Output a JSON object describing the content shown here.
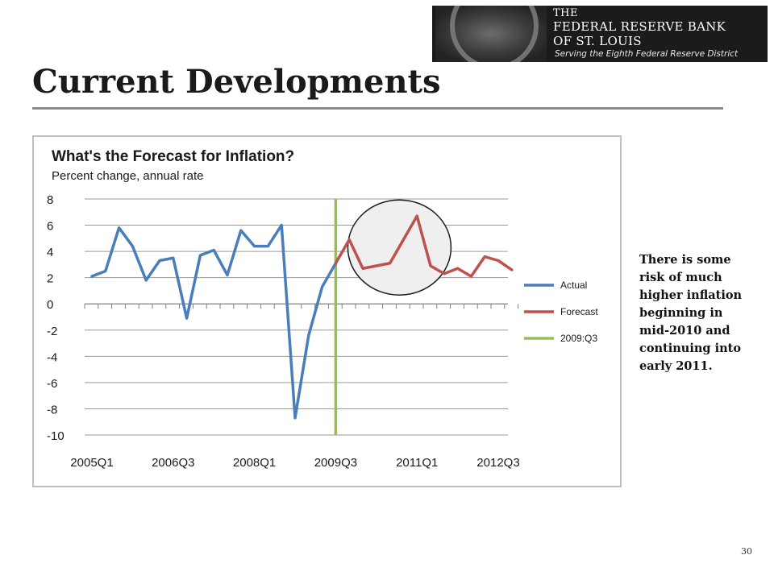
{
  "slide": {
    "title": "Current Developments",
    "note": "There is some risk of much higher inflation beginning in mid-2010 and continuing into early 2011.",
    "page_number": "30"
  },
  "logo": {
    "line1": "THE",
    "line2": "FEDERAL RESERVE BANK",
    "line3": "OF ST. LOUIS",
    "tagline": "Serving the Eighth Federal Reserve District"
  },
  "colors": {
    "actual": "#4a7ebb",
    "forecast": "#c0504d",
    "marker": "#9bbb59",
    "highlight_fill": "#efefef"
  },
  "chart_data": {
    "type": "line",
    "title": "What's the Forecast for Inflation?",
    "subtitle": "Percent change, annual rate",
    "xlabel": "",
    "ylabel": "",
    "ylim": [
      -10,
      8
    ],
    "yticks": [
      8,
      6,
      4,
      2,
      0,
      -2,
      -4,
      -6,
      -8,
      -10
    ],
    "grid": true,
    "legend_position": "right",
    "categories": [
      "2005Q1",
      "2005Q2",
      "2005Q3",
      "2005Q4",
      "2006Q1",
      "2006Q2",
      "2006Q3",
      "2006Q4",
      "2007Q1",
      "2007Q2",
      "2007Q3",
      "2007Q4",
      "2008Q1",
      "2008Q2",
      "2008Q3",
      "2008Q4",
      "2009Q1",
      "2009Q2",
      "2009Q3",
      "2009Q4",
      "2010Q1",
      "2010Q2",
      "2010Q3",
      "2010Q4",
      "2011Q1",
      "2011Q2",
      "2011Q3",
      "2011Q4",
      "2012Q1",
      "2012Q2",
      "2012Q3",
      "2012Q4"
    ],
    "x_tick_labels": [
      "2005Q1",
      "2006Q3",
      "2008Q1",
      "2009Q3",
      "2011Q1",
      "2012Q3"
    ],
    "series": [
      {
        "name": "Actual",
        "color": "#4a7ebb",
        "values": [
          2.1,
          2.5,
          5.8,
          4.4,
          1.8,
          3.3,
          3.5,
          -1.1,
          3.7,
          4.1,
          2.2,
          5.6,
          4.4,
          4.4,
          6.0,
          -8.7,
          -2.4,
          1.3,
          3.1,
          null,
          null,
          null,
          null,
          null,
          null,
          null,
          null,
          null,
          null,
          null,
          null,
          null
        ]
      },
      {
        "name": "Forecast",
        "color": "#c0504d",
        "values": [
          null,
          null,
          null,
          null,
          null,
          null,
          null,
          null,
          null,
          null,
          null,
          null,
          null,
          null,
          null,
          null,
          null,
          null,
          3.1,
          4.9,
          2.7,
          2.9,
          3.1,
          4.9,
          6.7,
          2.9,
          2.3,
          2.7,
          2.1,
          3.6,
          3.3,
          2.6
        ]
      }
    ],
    "vertical_marker": {
      "name": "2009:Q3",
      "at": "2009Q3",
      "color": "#9bbb59"
    },
    "annotation": {
      "type": "circle",
      "center_category": "2010Q4",
      "center_value": 4.3
    }
  }
}
